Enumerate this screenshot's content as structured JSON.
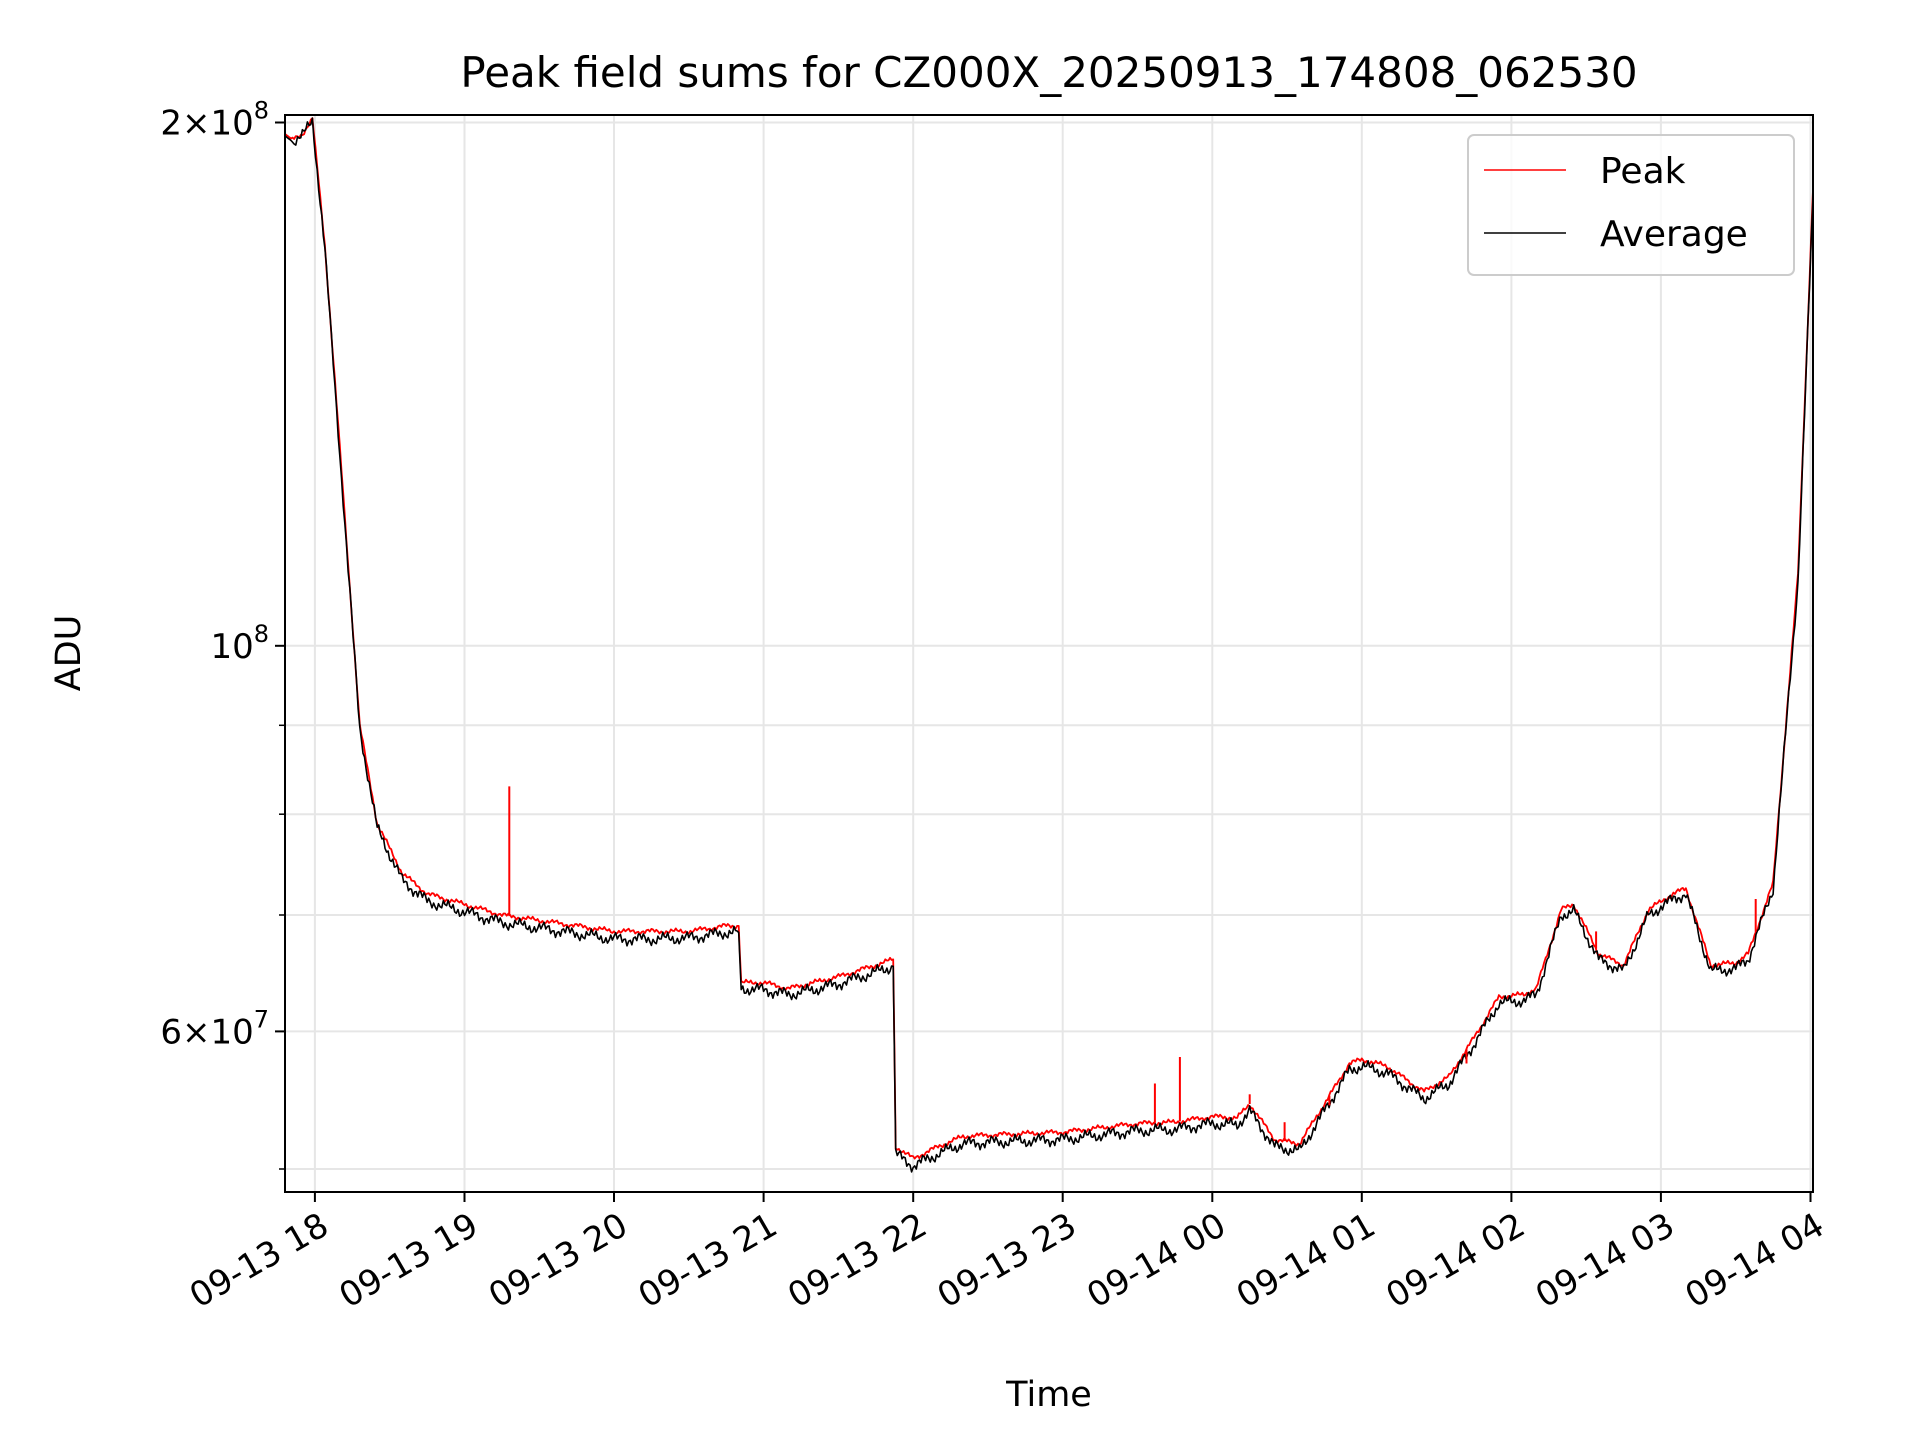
{
  "chart_data": {
    "type": "line",
    "title": "Peak field sums for CZ000X_20250913_174808_062530",
    "xlabel": "Time",
    "ylabel": "ADU",
    "yscale": "log",
    "ylim": [
      48500000,
      202000000
    ],
    "xlim": [
      "2025-09-13 17:48",
      "2025-09-14 04:01"
    ],
    "grid": true,
    "legend_position": "top-right",
    "x_ticks": [
      "2025-09-13 18:00",
      "2025-09-13 19:00",
      "2025-09-13 20:00",
      "2025-09-13 21:00",
      "2025-09-13 22:00",
      "2025-09-13 23:00",
      "2025-09-14 00:00",
      "2025-09-14 01:00",
      "2025-09-14 02:00",
      "2025-09-14 03:00",
      "2025-09-14 04:00"
    ],
    "x_tick_labels": [
      "09-13 18",
      "09-13 19",
      "09-13 20",
      "09-13 21",
      "09-13 22",
      "09-13 23",
      "09-14 00",
      "09-14 01",
      "09-14 02",
      "09-14 03",
      "09-14 04"
    ],
    "y_major_ticks": [
      {
        "value": 60000000,
        "mant": "6",
        "exp": "7"
      },
      {
        "value": 100000000,
        "mant": "",
        "exp": "8"
      },
      {
        "value": 200000000,
        "mant": "2",
        "exp": "8"
      }
    ],
    "y_minor_ticks": [
      50000000,
      70000000,
      80000000,
      90000000
    ],
    "series": [
      {
        "name": "Peak",
        "color": "#ff0000",
        "x": [
          "2025-09-13 17:48",
          "2025-09-13 17:51",
          "2025-09-13 17:55",
          "2025-09-13 17:59",
          "2025-09-13 18:04",
          "2025-09-13 18:10",
          "2025-09-13 18:18",
          "2025-09-13 18:25",
          "2025-09-13 18:35",
          "2025-09-13 18:45",
          "2025-09-13 19:00",
          "2025-09-13 19:15",
          "2025-09-13 19:30",
          "2025-09-13 19:45",
          "2025-09-13 20:00",
          "2025-09-13 20:15",
          "2025-09-13 20:30",
          "2025-09-13 20:45",
          "2025-09-13 20:50",
          "2025-09-13 20:51",
          "2025-09-13 21:00",
          "2025-09-13 21:10",
          "2025-09-13 21:20",
          "2025-09-13 21:30",
          "2025-09-13 21:45",
          "2025-09-13 21:52",
          "2025-09-13 21:53",
          "2025-09-13 22:00",
          "2025-09-13 22:10",
          "2025-09-13 22:20",
          "2025-09-13 22:30",
          "2025-09-13 23:00",
          "2025-09-13 23:30",
          "2025-09-13 23:45",
          "2025-09-14 00:00",
          "2025-09-14 00:10",
          "2025-09-14 00:15",
          "2025-09-14 00:25",
          "2025-09-14 00:35",
          "2025-09-14 00:45",
          "2025-09-14 00:55",
          "2025-09-14 01:00",
          "2025-09-14 01:10",
          "2025-09-14 01:20",
          "2025-09-14 01:25",
          "2025-09-14 01:35",
          "2025-09-14 01:45",
          "2025-09-14 01:55",
          "2025-09-14 02:05",
          "2025-09-14 02:10",
          "2025-09-14 02:20",
          "2025-09-14 02:25",
          "2025-09-14 02:35",
          "2025-09-14 02:45",
          "2025-09-14 02:55",
          "2025-09-14 03:05",
          "2025-09-14 03:10",
          "2025-09-14 03:20",
          "2025-09-14 03:30",
          "2025-09-14 03:35",
          "2025-09-14 03:45",
          "2025-09-14 03:55",
          "2025-09-14 04:01"
        ],
        "y": [
          197000000,
          195500000,
          197000000,
          201000000,
          170000000,
          130000000,
          90000000,
          79000000,
          74000000,
          72000000,
          71000000,
          70000000,
          69500000,
          69000000,
          68500000,
          68500000,
          68500000,
          69000000,
          69000000,
          64000000,
          64000000,
          63500000,
          64000000,
          64500000,
          65500000,
          66000000,
          51500000,
          50700000,
          51500000,
          52200000,
          52300000,
          52500000,
          53100000,
          53200000,
          53600000,
          53500000,
          54500000,
          52000000,
          51700000,
          54500000,
          57500000,
          57800000,
          57300000,
          56000000,
          55400000,
          56500000,
          59500000,
          62800000,
          63000000,
          63500000,
          70500000,
          71000000,
          66500000,
          65500000,
          70500000,
          72000000,
          72500000,
          65500000,
          65700000,
          66500000,
          73000000,
          110000000,
          183000000
        ]
      },
      {
        "name": "Average",
        "color": "#000000",
        "x": [
          "2025-09-13 17:48",
          "2025-09-13 17:51",
          "2025-09-13 17:55",
          "2025-09-13 17:59",
          "2025-09-13 18:04",
          "2025-09-13 18:10",
          "2025-09-13 18:18",
          "2025-09-13 18:25",
          "2025-09-13 18:35",
          "2025-09-13 18:45",
          "2025-09-13 19:00",
          "2025-09-13 19:15",
          "2025-09-13 19:30",
          "2025-09-13 19:45",
          "2025-09-13 20:00",
          "2025-09-13 20:15",
          "2025-09-13 20:30",
          "2025-09-13 20:45",
          "2025-09-13 20:50",
          "2025-09-13 20:51",
          "2025-09-13 21:00",
          "2025-09-13 21:10",
          "2025-09-13 21:20",
          "2025-09-13 21:30",
          "2025-09-13 21:45",
          "2025-09-13 21:52",
          "2025-09-13 21:53",
          "2025-09-13 22:00",
          "2025-09-13 22:10",
          "2025-09-13 22:20",
          "2025-09-13 22:30",
          "2025-09-13 23:00",
          "2025-09-13 23:30",
          "2025-09-13 23:45",
          "2025-09-14 00:00",
          "2025-09-14 00:10",
          "2025-09-14 00:15",
          "2025-09-14 00:25",
          "2025-09-14 00:35",
          "2025-09-14 00:45",
          "2025-09-14 00:55",
          "2025-09-14 01:00",
          "2025-09-14 01:10",
          "2025-09-14 01:20",
          "2025-09-14 01:25",
          "2025-09-14 01:35",
          "2025-09-14 01:45",
          "2025-09-14 01:55",
          "2025-09-14 02:05",
          "2025-09-14 02:10",
          "2025-09-14 02:20",
          "2025-09-14 02:25",
          "2025-09-14 02:35",
          "2025-09-14 02:45",
          "2025-09-14 02:55",
          "2025-09-14 03:05",
          "2025-09-14 03:10",
          "2025-09-14 03:20",
          "2025-09-14 03:30",
          "2025-09-14 03:35",
          "2025-09-14 03:45",
          "2025-09-14 03:55",
          "2025-09-14 04:01"
        ],
        "y": [
          196500000,
          195000000,
          196500000,
          200500000,
          169000000,
          129000000,
          89500000,
          78500000,
          73300000,
          71300000,
          70300000,
          69300000,
          68800000,
          68300000,
          67800000,
          67800000,
          67900000,
          68400000,
          68400000,
          63500000,
          63400000,
          63000000,
          63400000,
          63900000,
          64900000,
          65400000,
          51000000,
          50200000,
          51000000,
          51700000,
          51800000,
          52000000,
          52600000,
          52700000,
          53100000,
          53000000,
          54000000,
          51500000,
          51200000,
          54000000,
          57000000,
          57300000,
          56800000,
          55500000,
          54900000,
          56000000,
          59000000,
          62300000,
          62500000,
          63000000,
          70000000,
          70400000,
          66000000,
          65000000,
          70000000,
          71500000,
          72000000,
          65000000,
          65200000,
          66000000,
          72500000,
          109000000,
          181000000
        ]
      }
    ],
    "peak_spikes": [
      {
        "x": "2025-09-13 19:18",
        "y": 83000000
      },
      {
        "x": "2025-09-13 23:37",
        "y": 56000000
      },
      {
        "x": "2025-09-13 23:47",
        "y": 58000000
      },
      {
        "x": "2025-09-14 00:15",
        "y": 55200000
      },
      {
        "x": "2025-09-14 00:29",
        "y": 53200000
      },
      {
        "x": "2025-09-14 00:47",
        "y": 54400000
      },
      {
        "x": "2025-09-14 01:42",
        "y": 57500000
      },
      {
        "x": "2025-09-14 02:34",
        "y": 68500000
      },
      {
        "x": "2025-09-14 03:38",
        "y": 71500000
      }
    ],
    "legend": [
      {
        "label": "Peak",
        "color": "#ff0000"
      },
      {
        "label": "Average",
        "color": "#000000"
      }
    ]
  }
}
